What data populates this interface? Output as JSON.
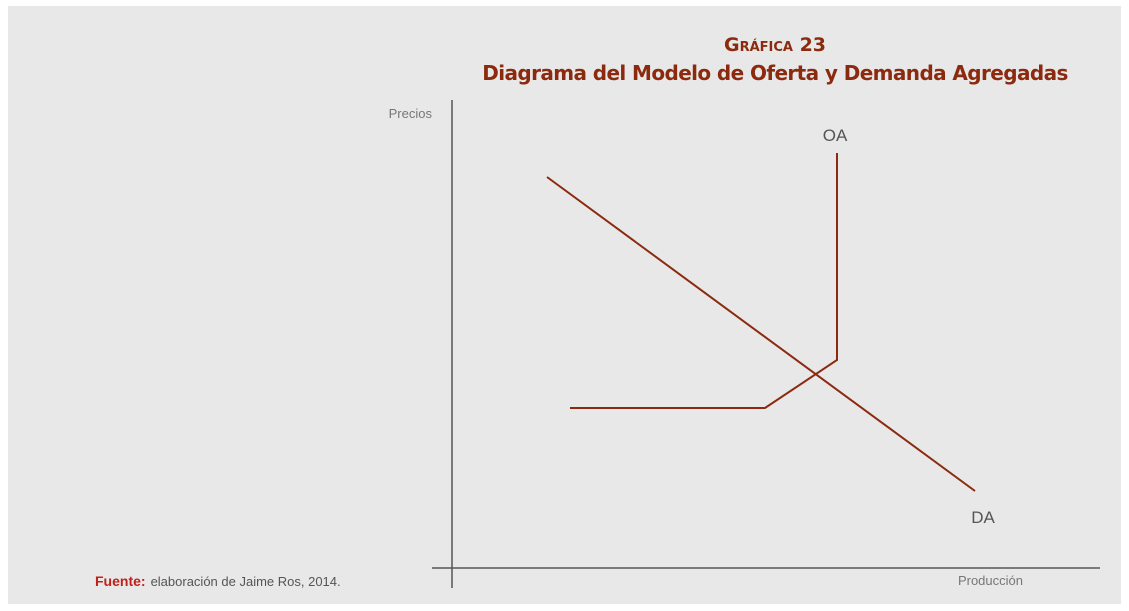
{
  "title": "Gráfica 23",
  "subtitle": "Diagrama del Modelo de Oferta y Demanda Agregadas",
  "y_axis_label": "Precios",
  "x_axis_label": "Producción",
  "supply_label": "OA",
  "demand_label": "DA",
  "source": {
    "label": "Fuente:",
    "text": "elaboración de Jaime Ros, 2014."
  }
}
